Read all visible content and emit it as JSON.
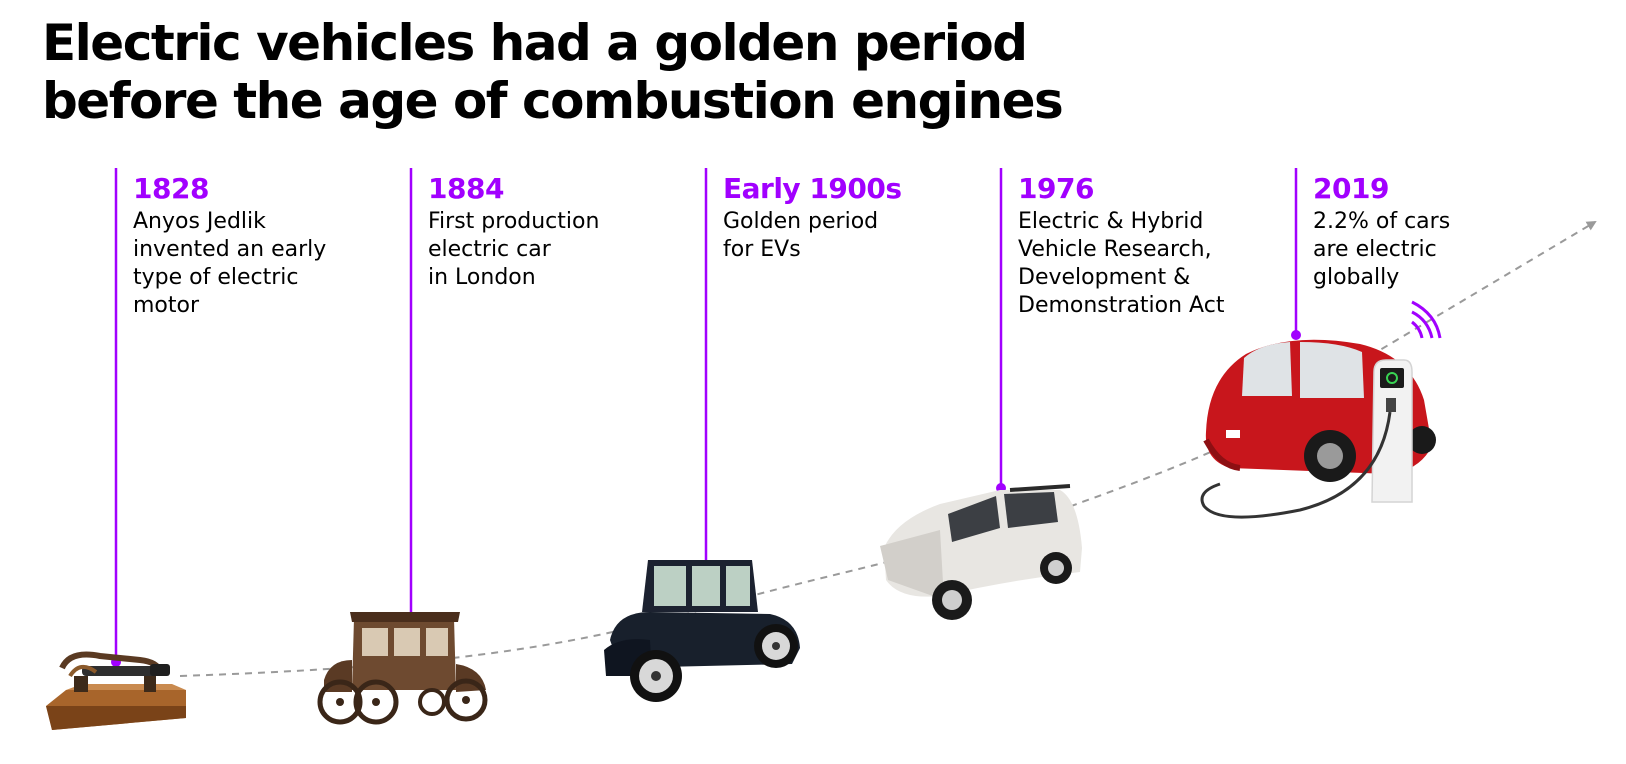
{
  "title": "Electric vehicles had a golden period\nbefore the age of combustion engines",
  "colors": {
    "accent": "#a100ff",
    "trend_line": "#9a9a9a",
    "text": "#000000"
  },
  "milestones": [
    {
      "year": "1828",
      "description": "Anyos Jedlik\ninvented an early\ntype of electric\nmotor",
      "image": "early-electric-motor"
    },
    {
      "year": "1884",
      "description": "First production\nelectric car\nin London",
      "image": "vintage-electric-carriage"
    },
    {
      "year": "Early 1900s",
      "description": "Golden period\nfor EVs",
      "image": "early-1900s-electric-car"
    },
    {
      "year": "1976",
      "description": "Electric & Hybrid\nVehicle Research,\nDevelopment &\nDemonstration Act",
      "image": "1970s-compact-electric-car"
    },
    {
      "year": "2019",
      "description": "2.2% of cars\nare electric\nglobally",
      "image": "modern-ev-charging"
    }
  ]
}
